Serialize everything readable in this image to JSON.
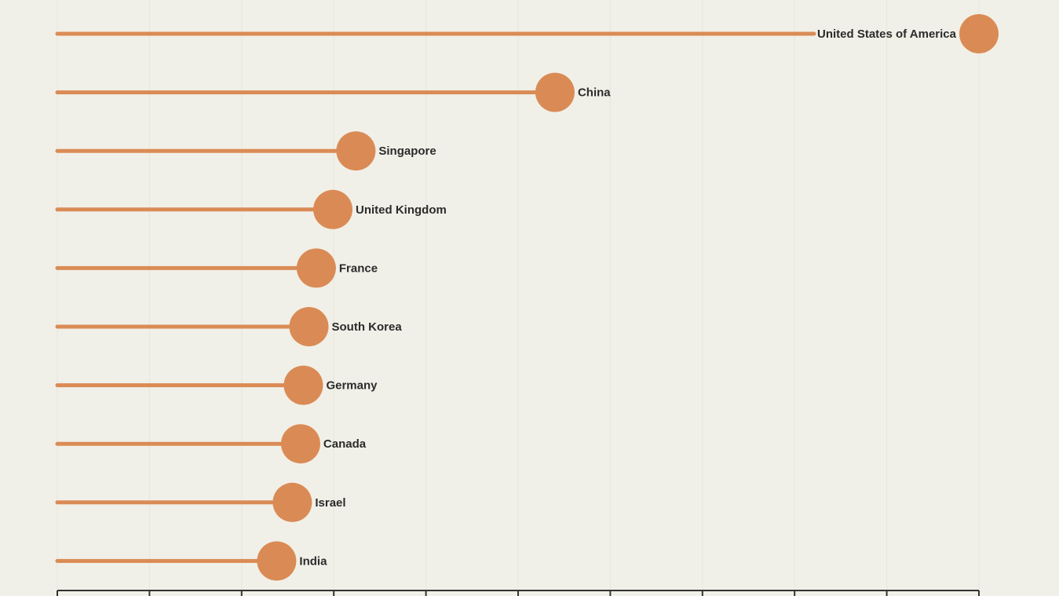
{
  "chart_data": {
    "type": "lollipop",
    "orientation": "horizontal",
    "xlim": [
      0,
      100
    ],
    "x_ticks": [
      0,
      10,
      20,
      30,
      40,
      50,
      60,
      70,
      80,
      90,
      100
    ],
    "x_tick_labels_visible": false,
    "grid": "vertical",
    "colors": {
      "background": "#f1f0e8",
      "mark": "#da8b55",
      "label": "#2b2b2b",
      "axis": "#333333",
      "grid": "#e8e6da"
    },
    "categories": [
      "United States of America",
      "China",
      "Singapore",
      "United Kingdom",
      "France",
      "South Korea",
      "Germany",
      "Canada",
      "Israel",
      "India"
    ],
    "values": [
      100,
      54,
      32.4,
      29.9,
      28.1,
      27.3,
      26.7,
      26.4,
      25.5,
      23.8
    ],
    "label_position_note": "labels to the right of dots; for the two largest values labels sit left of dot"
  }
}
